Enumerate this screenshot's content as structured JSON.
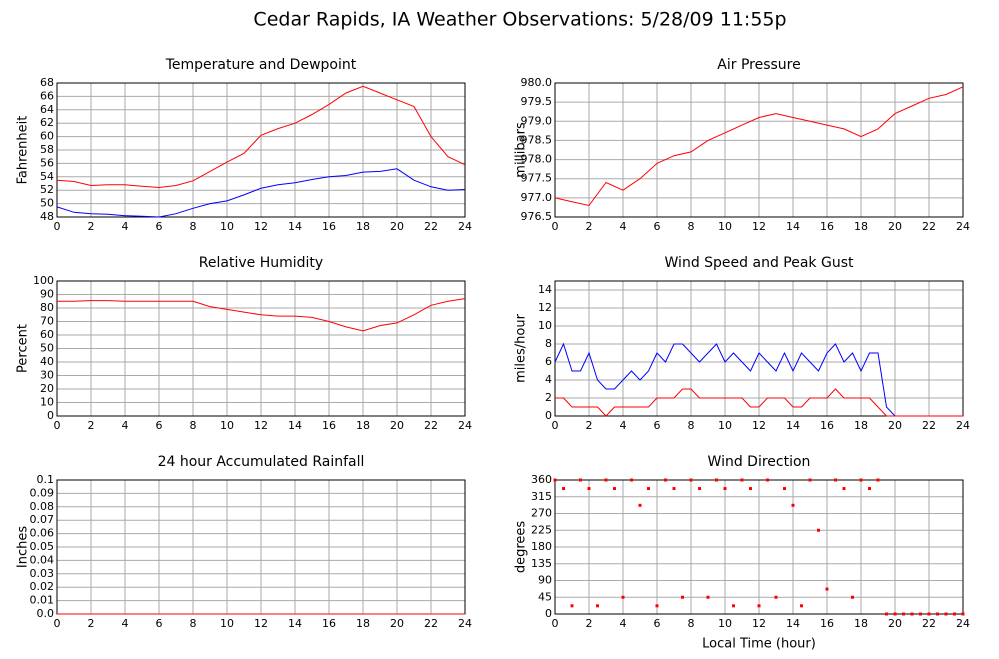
{
  "title": "Cedar Rapids, IA Weather Observations: 5/28/09 11:55p",
  "chart_data": [
    {
      "type": "line",
      "title": "Temperature and Dewpoint",
      "ylabel": "Fahrenheit",
      "x": [
        0,
        1,
        2,
        3,
        4,
        5,
        6,
        7,
        8,
        9,
        10,
        11,
        12,
        13,
        14,
        15,
        16,
        17,
        18,
        19,
        20,
        21,
        22,
        23,
        24
      ],
      "series": [
        {
          "color": "#ff0000",
          "values": [
            53.5,
            53.3,
            52.7,
            52.8,
            52.8,
            52.6,
            52.4,
            52.7,
            53.4,
            54.8,
            56.2,
            57.5,
            60.2,
            61.2,
            62,
            63.3,
            64.8,
            66.5,
            67.5,
            66.5,
            65.5,
            64.5,
            60,
            57,
            55.8
          ]
        },
        {
          "color": "#0000ff",
          "values": [
            49.5,
            48.7,
            48.5,
            48.4,
            48.2,
            48.1,
            48,
            48.5,
            49.3,
            50,
            50.4,
            51.3,
            52.3,
            52.8,
            53.1,
            53.6,
            54,
            54.2,
            54.7,
            54.8,
            55.2,
            53.5,
            52.5,
            52,
            52.1
          ]
        }
      ],
      "xlim": [
        0,
        24
      ],
      "xticks": [
        0,
        2,
        4,
        6,
        8,
        10,
        12,
        14,
        16,
        18,
        20,
        22,
        24
      ],
      "ylim": [
        48,
        68
      ],
      "yticks": [
        48,
        50,
        52,
        54,
        56,
        58,
        60,
        62,
        64,
        66,
        68
      ],
      "grid": true
    },
    {
      "type": "line",
      "title": "Air Pressure",
      "ylabel": "millibars",
      "x": [
        0,
        1,
        2,
        3,
        4,
        5,
        6,
        7,
        8,
        9,
        10,
        11,
        12,
        13,
        14,
        15,
        16,
        17,
        18,
        19,
        20,
        21,
        22,
        23,
        24
      ],
      "series": [
        {
          "color": "#ff0000",
          "values": [
            977.0,
            976.9,
            976.8,
            977.4,
            977.2,
            977.5,
            977.9,
            978.1,
            978.2,
            978.5,
            978.7,
            978.9,
            979.1,
            979.2,
            979.1,
            979.0,
            978.9,
            978.8,
            978.6,
            978.8,
            979.2,
            979.4,
            979.6,
            979.7,
            979.9
          ]
        }
      ],
      "xlim": [
        0,
        24
      ],
      "xticks": [
        0,
        2,
        4,
        6,
        8,
        10,
        12,
        14,
        16,
        18,
        20,
        22,
        24
      ],
      "ylim": [
        976.5,
        980
      ],
      "yticks": [
        976.5,
        {
          "value": 977,
          "label": "977.0"
        },
        977.5,
        {
          "value": 978,
          "label": "978.0"
        },
        978.5,
        {
          "value": 979,
          "label": "979.0"
        },
        979.5,
        {
          "value": 980,
          "label": "980.0"
        }
      ],
      "grid": true
    },
    {
      "type": "line",
      "title": "Relative Humidity",
      "ylabel": "Percent",
      "x": [
        0,
        1,
        2,
        3,
        4,
        5,
        6,
        7,
        8,
        9,
        10,
        11,
        12,
        13,
        14,
        15,
        16,
        17,
        18,
        19,
        20,
        21,
        22,
        23,
        24
      ],
      "series": [
        {
          "color": "#ff0000",
          "values": [
            85,
            85,
            85.5,
            85.5,
            85,
            85,
            85,
            85,
            85,
            81,
            79,
            77,
            75,
            74,
            74,
            73,
            70,
            66,
            63,
            67,
            69,
            75,
            82,
            85,
            87
          ]
        }
      ],
      "xlim": [
        0,
        24
      ],
      "xticks": [
        0,
        2,
        4,
        6,
        8,
        10,
        12,
        14,
        16,
        18,
        20,
        22,
        24
      ],
      "ylim": [
        0,
        100
      ],
      "yticks": [
        0,
        10,
        20,
        30,
        40,
        50,
        60,
        70,
        80,
        90,
        100
      ],
      "grid": true
    },
    {
      "type": "line",
      "title": "Wind Speed and Peak Gust",
      "ylabel": "miles/hour",
      "x": [
        0,
        0.5,
        1,
        1.5,
        2,
        2.5,
        3,
        3.5,
        4,
        4.5,
        5,
        5.5,
        6,
        6.5,
        7,
        7.5,
        8,
        8.5,
        9,
        9.5,
        10,
        10.5,
        11,
        11.5,
        12,
        12.5,
        13,
        13.5,
        14,
        14.5,
        15,
        15.5,
        16,
        16.5,
        17,
        17.5,
        18,
        18.5,
        19,
        19.5,
        20,
        20.5,
        21,
        21.5,
        22,
        22.5,
        23,
        23.5,
        24
      ],
      "series": [
        {
          "color": "#0000ff",
          "values": [
            6,
            8,
            5,
            5,
            7,
            4,
            3,
            3,
            4,
            5,
            4,
            5,
            7,
            6,
            8,
            8,
            7,
            6,
            7,
            8,
            6,
            7,
            6,
            5,
            7,
            6,
            5,
            7,
            5,
            7,
            6,
            5,
            7,
            8,
            6,
            7,
            5,
            7,
            7,
            1,
            0,
            0,
            0,
            0,
            0,
            0,
            0,
            0,
            0
          ]
        },
        {
          "color": "#ff0000",
          "values": [
            2,
            2,
            1,
            1,
            1,
            1,
            0,
            1,
            1,
            1,
            1,
            1,
            2,
            2,
            2,
            3,
            3,
            2,
            2,
            2,
            2,
            2,
            2,
            1,
            1,
            2,
            2,
            2,
            1,
            1,
            2,
            2,
            2,
            3,
            2,
            2,
            2,
            2,
            1,
            0,
            0,
            0,
            0,
            0,
            0,
            0,
            0,
            0,
            0
          ]
        }
      ],
      "xlim": [
        0,
        24
      ],
      "xticks": [
        0,
        2,
        4,
        6,
        8,
        10,
        12,
        14,
        16,
        18,
        20,
        22,
        24
      ],
      "ylim": [
        0,
        15
      ],
      "yticks": [
        0,
        2,
        4,
        6,
        8,
        10,
        12,
        14
      ],
      "grid": true
    },
    {
      "type": "line",
      "title": "24 hour Accumulated Rainfall",
      "ylabel": "Inches",
      "x": [
        0,
        24
      ],
      "series": [
        {
          "color": "#ff0000",
          "values": [
            0,
            0
          ]
        }
      ],
      "xlim": [
        0,
        24
      ],
      "xticks": [
        0,
        2,
        4,
        6,
        8,
        10,
        12,
        14,
        16,
        18,
        20,
        22,
        24
      ],
      "ylim": [
        0,
        0.1
      ],
      "yticks": [
        {
          "value": 0,
          "label": "0.0"
        },
        0.01,
        0.02,
        0.03,
        0.04,
        0.05,
        0.06,
        0.07,
        0.08,
        0.09,
        0.1
      ],
      "grid": true
    },
    {
      "type": "scatter",
      "title": "Wind Direction",
      "ylabel": "degrees",
      "xlabel": "Local Time (hour)",
      "x": [
        0,
        0.5,
        1,
        1.5,
        2,
        2.5,
        3,
        3.5,
        4,
        4.5,
        5,
        5.5,
        6,
        6.5,
        7,
        7.5,
        8,
        8.5,
        9,
        9.5,
        10,
        10.5,
        11,
        11.5,
        12,
        12.5,
        13,
        13.5,
        14,
        14.5,
        15,
        15.5,
        16,
        16.5,
        17,
        17.5,
        18,
        18.5,
        19,
        19.5,
        20,
        20.5,
        21,
        21.5,
        22,
        22.5,
        23,
        23.5,
        24
      ],
      "series": [
        {
          "color": "#ff0000",
          "values": [
            360,
            337,
            22,
            360,
            337,
            22,
            360,
            337,
            45,
            360,
            292,
            337,
            22,
            360,
            337,
            45,
            360,
            337,
            45,
            360,
            337,
            22,
            360,
            337,
            22,
            360,
            45,
            337,
            292,
            22,
            360,
            225,
            67,
            360,
            337,
            45,
            360,
            337,
            360,
            0,
            0,
            0,
            0,
            0,
            0,
            0,
            0,
            0,
            0
          ]
        }
      ],
      "xlim": [
        0,
        24
      ],
      "xticks": [
        0,
        2,
        4,
        6,
        8,
        10,
        12,
        14,
        16,
        18,
        20,
        22,
        24
      ],
      "ylim": [
        0,
        360
      ],
      "yticks": [
        0,
        45,
        90,
        135,
        180,
        225,
        270,
        315,
        360
      ],
      "grid": true
    }
  ]
}
